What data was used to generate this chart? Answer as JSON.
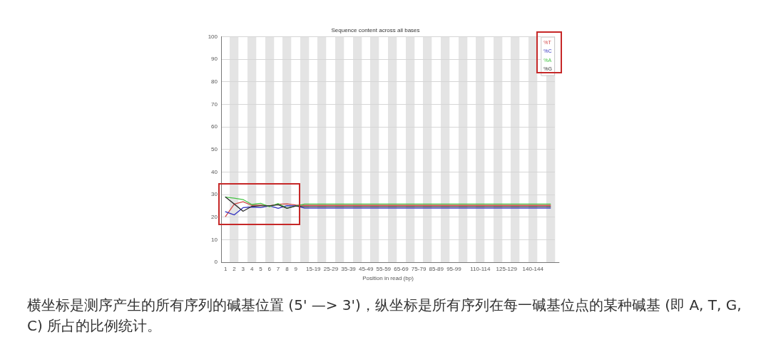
{
  "chart_data": {
    "type": "line",
    "title": "Sequence content across all bases",
    "xlabel": "Position in read (bp)",
    "categories": [
      "1",
      "2",
      "3",
      "4",
      "5",
      "6",
      "7",
      "8",
      "9",
      null,
      "15-19",
      null,
      "25-29",
      null,
      "35-39",
      null,
      "45-49",
      null,
      "55-59",
      null,
      "65-69",
      null,
      "75-79",
      null,
      "85-89",
      null,
      "95-99",
      null,
      null,
      "110-114",
      null,
      null,
      "125-129",
      null,
      null,
      "140-144",
      null,
      null
    ],
    "series": [
      {
        "name": "%T",
        "color": "#d24848",
        "values": [
          20.3,
          25.8,
          26.8,
          25.2,
          25.3,
          25.0,
          25.7,
          25.9,
          25.4,
          25.2,
          25.2,
          25.2,
          25.2,
          25.2,
          25.2,
          25.2,
          25.2,
          25.2,
          25.2,
          25.2,
          25.2,
          25.2,
          25.2,
          25.2,
          25.2,
          25.2,
          25.2,
          25.2,
          25.2,
          25.2,
          25.2,
          25.2,
          25.2,
          25.2,
          25.2,
          25.2,
          25.2,
          25.2
        ]
      },
      {
        "name": "%C",
        "color": "#3434c0",
        "values": [
          22.4,
          21.0,
          24.2,
          24.5,
          24.2,
          25.0,
          23.9,
          25.1,
          25.0,
          24.0,
          24.0,
          24.0,
          24.0,
          24.0,
          24.0,
          24.0,
          24.0,
          24.0,
          24.0,
          24.0,
          24.0,
          24.0,
          24.0,
          24.0,
          24.0,
          24.0,
          24.0,
          24.0,
          24.0,
          24.0,
          24.0,
          24.0,
          24.0,
          24.0,
          24.0,
          24.0,
          24.0,
          24.0
        ]
      },
      {
        "name": "%A",
        "color": "#44c444",
        "values": [
          28.9,
          28.4,
          27.8,
          25.6,
          26.1,
          24.6,
          26.0,
          24.0,
          24.9,
          25.8,
          25.8,
          25.8,
          25.8,
          25.8,
          25.8,
          25.8,
          25.8,
          25.8,
          25.8,
          25.8,
          25.8,
          25.8,
          25.8,
          25.8,
          25.8,
          25.8,
          25.8,
          25.8,
          25.8,
          25.8,
          25.8,
          25.8,
          25.8,
          25.8,
          25.8,
          25.8,
          25.8,
          25.8
        ]
      },
      {
        "name": "%G",
        "color": "#303030",
        "values": [
          28.9,
          25.8,
          22.6,
          24.8,
          25.0,
          25.0,
          25.5,
          23.9,
          24.9,
          24.6,
          24.6,
          24.6,
          24.6,
          24.6,
          24.6,
          24.6,
          24.6,
          24.6,
          24.6,
          24.6,
          24.6,
          24.6,
          24.6,
          24.6,
          24.6,
          24.6,
          24.6,
          24.6,
          24.6,
          24.6,
          24.6,
          24.6,
          24.6,
          24.6,
          24.6,
          24.6,
          24.6,
          24.6
        ]
      }
    ],
    "ylim": [
      0,
      100
    ],
    "yticks": [
      0,
      10,
      20,
      30,
      40,
      50,
      60,
      70,
      80,
      90,
      100
    ],
    "grid": true,
    "legend": "top right",
    "annotations": [
      "横坐标是测序产生的所有序列的碱基位置 (5' —> 3')，纵坐标是所有序列在每一碱基位点的某种碱基 (即 A, T, G, C) 所占的比例统计。"
    ]
  }
}
